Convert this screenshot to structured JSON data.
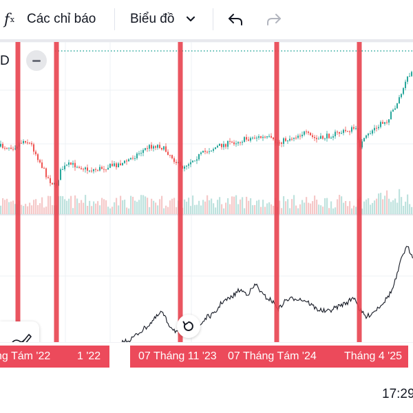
{
  "toolbar": {
    "fx_icon": "fx-icon",
    "indicators_label": "Các chỉ báo",
    "chart_menu_label": "Biểu đồ",
    "chevron_icon": "chevron-down-icon",
    "undo_icon": "undo-icon",
    "redo_icon": "redo-icon"
  },
  "chart": {
    "symbol_fragment": "D",
    "colors": {
      "up": "#26a69a",
      "down": "#ef5350",
      "marker": "#e8424f",
      "compare_line": "#131722",
      "price_line": "#26a69a"
    },
    "markers": [
      "vertical-marker-1",
      "vertical-marker-2",
      "vertical-marker-3",
      "vertical-marker-4",
      "vertical-marker-5"
    ]
  },
  "time_axis": {
    "labels": [
      {
        "text": "ng Tám '22"
      },
      {
        "text": "1 '22"
      },
      {
        "text": "07 Tháng 11 '23"
      },
      {
        "text": "07 Tháng Tám '24"
      },
      {
        "text": "Tháng 4 '25"
      }
    ]
  },
  "status_bar": {
    "time": "17:29"
  }
}
